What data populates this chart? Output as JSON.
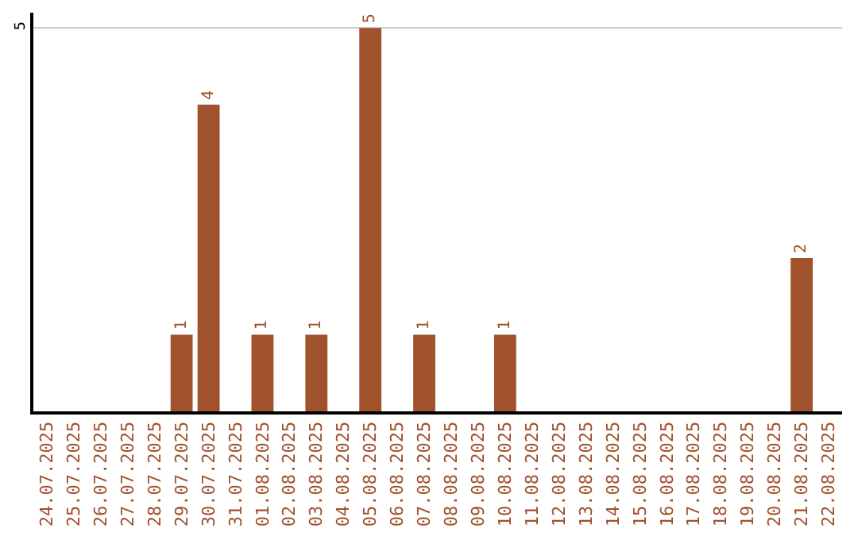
{
  "chart_data": {
    "type": "bar",
    "categories": [
      "24.07.2025",
      "25.07.2025",
      "26.07.2025",
      "27.07.2025",
      "28.07.2025",
      "29.07.2025",
      "30.07.2025",
      "31.07.2025",
      "01.08.2025",
      "02.08.2025",
      "03.08.2025",
      "04.08.2025",
      "05.08.2025",
      "06.08.2025",
      "07.08.2025",
      "08.08.2025",
      "09.08.2025",
      "10.08.2025",
      "11.08.2025",
      "12.08.2025",
      "13.08.2025",
      "14.08.2025",
      "15.08.2025",
      "16.08.2025",
      "17.08.2025",
      "18.08.2025",
      "19.08.2025",
      "20.08.2025",
      "21.08.2025",
      "22.08.2025"
    ],
    "values": [
      null,
      null,
      null,
      null,
      null,
      1,
      4,
      null,
      1,
      null,
      1,
      null,
      5,
      null,
      1,
      null,
      null,
      1,
      null,
      null,
      null,
      null,
      null,
      null,
      null,
      null,
      null,
      null,
      2,
      null
    ],
    "color": "#a0522d",
    "ylim": [
      0,
      5.2
    ],
    "yticks": [
      5
    ],
    "grid": "y",
    "data_labels": true,
    "legend": false
  }
}
